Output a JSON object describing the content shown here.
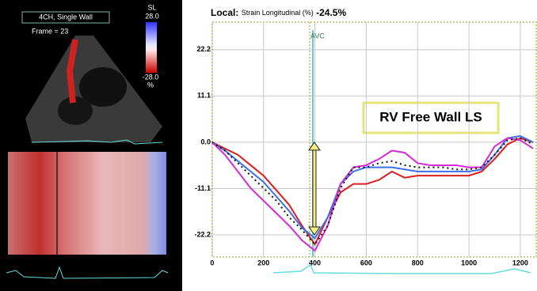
{
  "panel": {
    "view_label": "4CH, Single Wall",
    "frame": "Frame = 23",
    "scale_name": "SL",
    "scale_max": "28.0",
    "scale_min": "-28.0",
    "scale_unit": "%"
  },
  "chart_data": {
    "type": "line",
    "title_prefix": "Local:",
    "title": "Strain Longitudinal (%)",
    "title_value": "-24.5%",
    "annotation": "RV Free Wall LS",
    "marker": {
      "label": "AVC",
      "x": 392
    },
    "x": [
      0,
      50,
      100,
      150,
      200,
      250,
      300,
      350,
      400,
      450,
      500,
      550,
      600,
      650,
      700,
      750,
      800,
      850,
      900,
      950,
      1000,
      1050,
      1100,
      1150,
      1200,
      1250
    ],
    "series": [
      {
        "color": "#d81e1e",
        "values": [
          0,
          -1.5,
          -3,
          -5.5,
          -8,
          -11.5,
          -15,
          -20,
          -24.5,
          -18,
          -12,
          -10,
          -10,
          -9,
          -7,
          -8.5,
          -8,
          -8,
          -8,
          -8,
          -8,
          -7,
          -4,
          -0.5,
          1,
          0
        ]
      },
      {
        "color": "#3f6fe8",
        "values": [
          0,
          -2,
          -4.5,
          -7,
          -9.5,
          -13,
          -16.5,
          -20.5,
          -23,
          -18,
          -10,
          -7,
          -6,
          -6,
          -6,
          -6.5,
          -7,
          -7,
          -7,
          -7,
          -7,
          -6.5,
          -3,
          1,
          1.5,
          0
        ]
      },
      {
        "color": "#d62ad6",
        "values": [
          0,
          -3,
          -7,
          -11,
          -14,
          -17,
          -20,
          -23.5,
          -26,
          -20,
          -10,
          -6,
          -5.5,
          -4,
          -2,
          -2.5,
          -5,
          -5.5,
          -5.5,
          -5.5,
          -6,
          -6,
          -1,
          1,
          0.5,
          -1.5
        ]
      },
      {
        "color": "#111111",
        "dash": "2,4",
        "values": [
          0,
          -2,
          -5,
          -8,
          -11,
          -14,
          -18,
          -21,
          -24.5,
          -20,
          -11,
          -6,
          -6,
          -5,
          -4.5,
          -5.5,
          -6,
          -6,
          -6,
          -6.5,
          -6.5,
          -6,
          -3,
          0.5,
          1,
          -0.5
        ]
      }
    ],
    "xlim": [
      -12,
      1265
    ],
    "ylim": [
      -27.5,
      28.8
    ],
    "xticks": [
      0,
      200,
      400,
      600,
      800,
      1000,
      1200
    ],
    "yticks": [
      22.2,
      11.1,
      {
        "value": 0,
        "label": "0.0"
      },
      -11.1,
      -22.2
    ],
    "grid": true
  }
}
